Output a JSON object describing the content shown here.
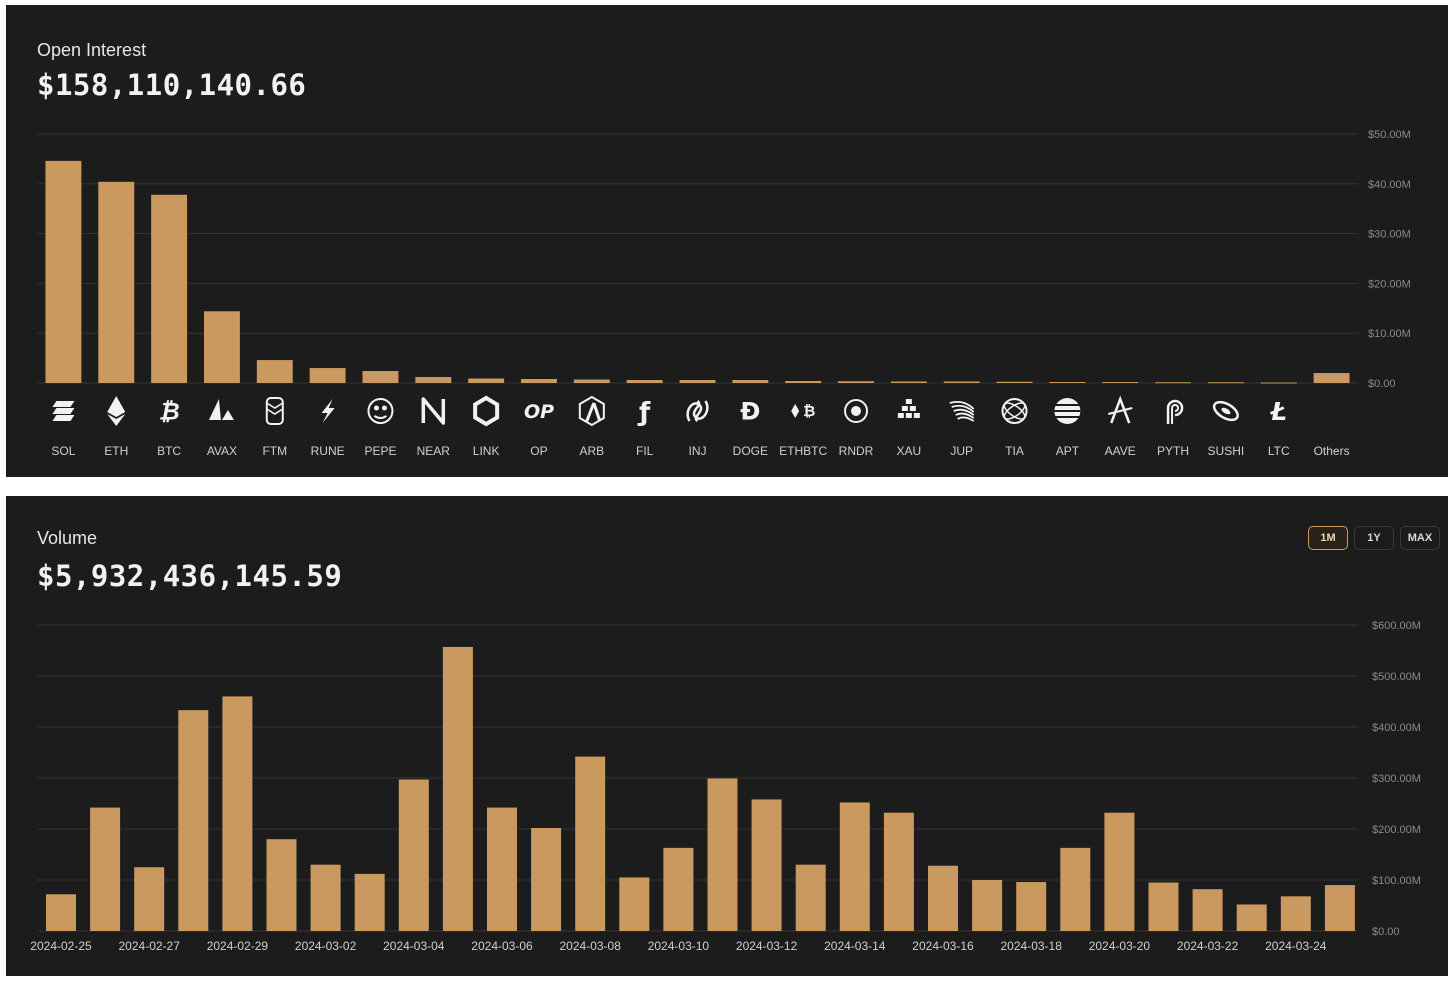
{
  "open_interest": {
    "title": "Open Interest",
    "value": "$158,110,140.66"
  },
  "volume": {
    "title": "Volume",
    "value": "$5,932,436,145.59",
    "range_buttons": [
      "1M",
      "1Y",
      "MAX"
    ],
    "active_range": "1M"
  },
  "colors": {
    "bar": "#c9995f",
    "panel": "#1c1c1c",
    "grid": "#333333",
    "text": "#c8c8c8"
  },
  "chart_data": [
    {
      "type": "bar",
      "title": "Open Interest",
      "categories": [
        "SOL",
        "ETH",
        "BTC",
        "AVAX",
        "FTM",
        "RUNE",
        "PEPE",
        "NEAR",
        "LINK",
        "OP",
        "ARB",
        "FIL",
        "INJ",
        "DOGE",
        "ETHBTC",
        "RNDR",
        "XAU",
        "JUP",
        "TIA",
        "APT",
        "AAVE",
        "PYTH",
        "SUSHI",
        "LTC",
        "Others"
      ],
      "icons": [
        "sol-icon",
        "eth-icon",
        "btc-icon",
        "avax-icon",
        "ftm-icon",
        "rune-icon",
        "pepe-icon",
        "near-icon",
        "link-icon",
        "op-icon",
        "arb-icon",
        "fil-icon",
        "inj-icon",
        "doge-icon",
        "ethbtc-icon",
        "rndr-icon",
        "xau-icon",
        "jup-icon",
        "tia-icon",
        "apt-icon",
        "aave-icon",
        "pyth-icon",
        "sushi-icon",
        "ltc-icon",
        "others-icon"
      ],
      "values": [
        44.6,
        40.4,
        37.8,
        14.4,
        4.6,
        3.0,
        2.4,
        1.2,
        0.9,
        0.8,
        0.7,
        0.6,
        0.6,
        0.6,
        0.4,
        0.35,
        0.3,
        0.3,
        0.25,
        0.2,
        0.2,
        0.15,
        0.15,
        0.1,
        2.0
      ],
      "unit": "$M",
      "yticks": [
        "$0.00",
        "$10.00M",
        "$20.00M",
        "$30.00M",
        "$40.00M",
        "$50.00M"
      ],
      "ylim": [
        0,
        50
      ],
      "grid": true
    },
    {
      "type": "bar",
      "title": "Volume",
      "x": [
        "2024-02-25",
        "2024-02-26",
        "2024-02-27",
        "2024-02-28",
        "2024-02-29",
        "2024-03-01",
        "2024-03-02",
        "2024-03-03",
        "2024-03-04",
        "2024-03-05",
        "2024-03-06",
        "2024-03-07",
        "2024-03-08",
        "2024-03-09",
        "2024-03-10",
        "2024-03-11",
        "2024-03-12",
        "2024-03-13",
        "2024-03-14",
        "2024-03-15",
        "2024-03-16",
        "2024-03-17",
        "2024-03-18",
        "2024-03-19",
        "2024-03-20",
        "2024-03-21",
        "2024-03-22",
        "2024-03-23",
        "2024-03-24",
        "2024-03-25"
      ],
      "values": [
        72,
        242,
        125,
        433,
        460,
        180,
        130,
        112,
        297,
        557,
        242,
        202,
        342,
        105,
        163,
        299,
        258,
        130,
        252,
        232,
        128,
        100,
        96,
        163,
        232,
        95,
        82,
        52,
        68,
        90
      ],
      "unit": "$M",
      "xticks": [
        "2024-02-25",
        "2024-02-27",
        "2024-02-29",
        "2024-03-02",
        "2024-03-04",
        "2024-03-06",
        "2024-03-08",
        "2024-03-10",
        "2024-03-12",
        "2024-03-14",
        "2024-03-16",
        "2024-03-18",
        "2024-03-20",
        "2024-03-22",
        "2024-03-24"
      ],
      "yticks": [
        "$0.00",
        "$100.00M",
        "$200.00M",
        "$300.00M",
        "$400.00M",
        "$500.00M",
        "$600.00M"
      ],
      "ylim": [
        0,
        600
      ],
      "grid": true
    }
  ]
}
